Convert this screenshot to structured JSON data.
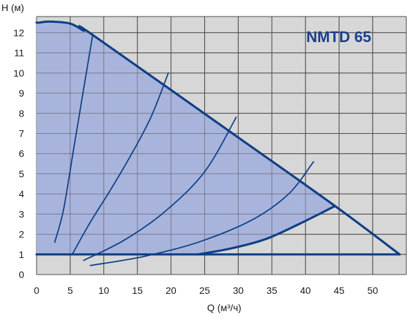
{
  "chart_data": {
    "type": "line",
    "title": "NMTD 65",
    "xlabel": "Q (м³/ч)",
    "ylabel": "H (м)",
    "xlim": [
      0,
      55
    ],
    "ylim": [
      0,
      12.8
    ],
    "x_ticks": [
      0,
      5,
      10,
      15,
      20,
      25,
      30,
      35,
      40,
      45,
      50
    ],
    "y_ticks": [
      0,
      1,
      2,
      3,
      4,
      5,
      6,
      7,
      8,
      9,
      10,
      11,
      12
    ],
    "grid": true,
    "colors": {
      "plot_background": "#d7d7d7",
      "grid": "#4a4a4a",
      "operating_area": "#a9b4dc",
      "curve": "#0e3f85",
      "model_label": "#1b3f8b"
    },
    "series": [
      {
        "role": "max-curve",
        "x": [
          0.4,
          2,
          5,
          7,
          8.3,
          30,
          44.4,
          54
        ],
        "y": [
          12.5,
          12.55,
          12.45,
          12.1,
          11.9,
          6.8,
          3.4,
          1.0
        ]
      },
      {
        "role": "operating-area-bottom",
        "x": [
          0,
          30,
          48,
          54
        ],
        "y": [
          1.0,
          1.0,
          1.0,
          1.0
        ]
      },
      {
        "role": "min-curve",
        "x": [
          24,
          29,
          34,
          39,
          44.4
        ],
        "y": [
          1.0,
          1.3,
          1.75,
          2.5,
          3.4
        ]
      },
      {
        "role": "system-curve",
        "x": [
          2.7,
          4,
          5.5,
          7,
          8.3
        ],
        "y": [
          1.6,
          3.2,
          6.2,
          9.2,
          11.8
        ]
      },
      {
        "role": "system-curve",
        "x": [
          5.3,
          8,
          11,
          14,
          17,
          19.6
        ],
        "y": [
          1.0,
          2.6,
          4.2,
          5.9,
          7.8,
          10.0
        ]
      },
      {
        "role": "system-curve",
        "x": [
          7,
          13,
          19,
          25,
          29.7
        ],
        "y": [
          0.7,
          1.7,
          3.1,
          5.1,
          7.8
        ]
      },
      {
        "role": "system-curve",
        "x": [
          8,
          16,
          24,
          32,
          37.5,
          41.2
        ],
        "y": [
          0.45,
          0.9,
          1.6,
          2.7,
          4.0,
          5.6
        ]
      }
    ]
  }
}
